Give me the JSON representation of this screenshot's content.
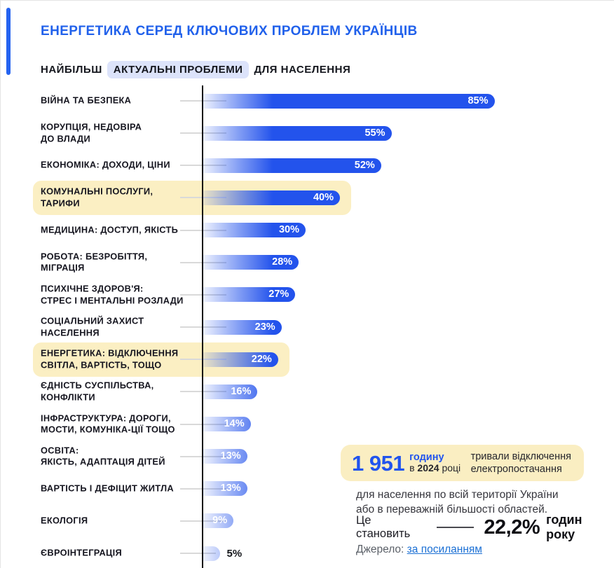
{
  "header": {
    "title": "ЕНЕРГЕТИКА СЕРЕД КЛЮЧОВИХ ПРОБЛЕМ УКРАЇНЦІВ",
    "subtitle_prefix": "НАЙБІЛЬШ",
    "subtitle_highlight": "АКТУАЛЬНІ ПРОБЛЕМИ",
    "subtitle_suffix": "ДЛЯ НАСЕЛЕННЯ"
  },
  "colors": {
    "bar_blue": "#2353ec",
    "title_blue": "#2161eb",
    "accent_stripe_blue": "#2563f0",
    "highlight_yellow": "#fbefc3",
    "subtitle_pill_lavender": "#dce3fa",
    "link_blue": "#1a6fd4",
    "axis_black": "#0c0c0e"
  },
  "chart_data": {
    "type": "bar",
    "orientation": "horizontal",
    "title": "НАЙБІЛЬШ АКТУАЛЬНІ ПРОБЛЕМИ ДЛЯ НАСЕЛЕННЯ",
    "unit": "%",
    "xlim": [
      0,
      100
    ],
    "grid": false,
    "legend": false,
    "categories": [
      "ВІЙНА ТА БЕЗПЕКА",
      "КОРУПЦІЯ, НЕДОВІРА\nДО ВЛАДИ",
      "ЕКОНОМІКА: ДОХОДИ, ЦІНИ",
      "КОМУНАЛЬНІ ПОСЛУГИ,\nТАРИФИ",
      "МЕДИЦИНА: ДОСТУП, ЯКІСТЬ",
      "РОБОТА: БЕЗРОБІТТЯ, МІГРАЦІЯ",
      "ПСИХІЧНЕ ЗДОРОВ'Я:\nСТРЕС І МЕНТАЛЬНІ РОЗЛАДИ",
      "СОЦІАЛЬНИЙ ЗАХИСТ\nНАСЕЛЕННЯ",
      "ЕНЕРГЕТИКА: ВІДКЛЮЧЕННЯ\nСВІТЛА, ВАРТІСТЬ, ТОЩО",
      "ЄДНІСТЬ СУСПІЛЬСТВА,\nКОНФЛІКТИ",
      "ІНФРАСТРУКТУРА: ДОРОГИ,\nМОСТИ, КОМУНІКА-ЦІЇ ТОЩО",
      "ОСВІТА:\nЯКІСТЬ, АДАПТАЦІЯ ДІТЕЙ",
      "ВАРТІСТЬ І ДЕФІЦИТ ЖИТЛА",
      "ЕКОЛОГІЯ",
      "ЄВРОІНТЕГРАЦІЯ"
    ],
    "values": [
      85,
      55,
      52,
      40,
      30,
      28,
      27,
      23,
      22,
      16,
      14,
      13,
      13,
      9,
      5
    ],
    "value_label_suffix": "%",
    "highlighted_indices": [
      3,
      8
    ]
  },
  "callout": {
    "hours_value": "1 951",
    "hours_unit": "годину",
    "year_prefix": "в",
    "year": "2024",
    "year_suffix": "році",
    "box_text": "тривали відключення\nелектропостачання",
    "description": "для населення по всій території України\nабо в переважній більшості областей.",
    "stat_label": "Це становить",
    "stat_value": "22,2%",
    "stat_suffix": "годин року",
    "source_label": "Джерело:",
    "source_link": "за посиланням"
  }
}
